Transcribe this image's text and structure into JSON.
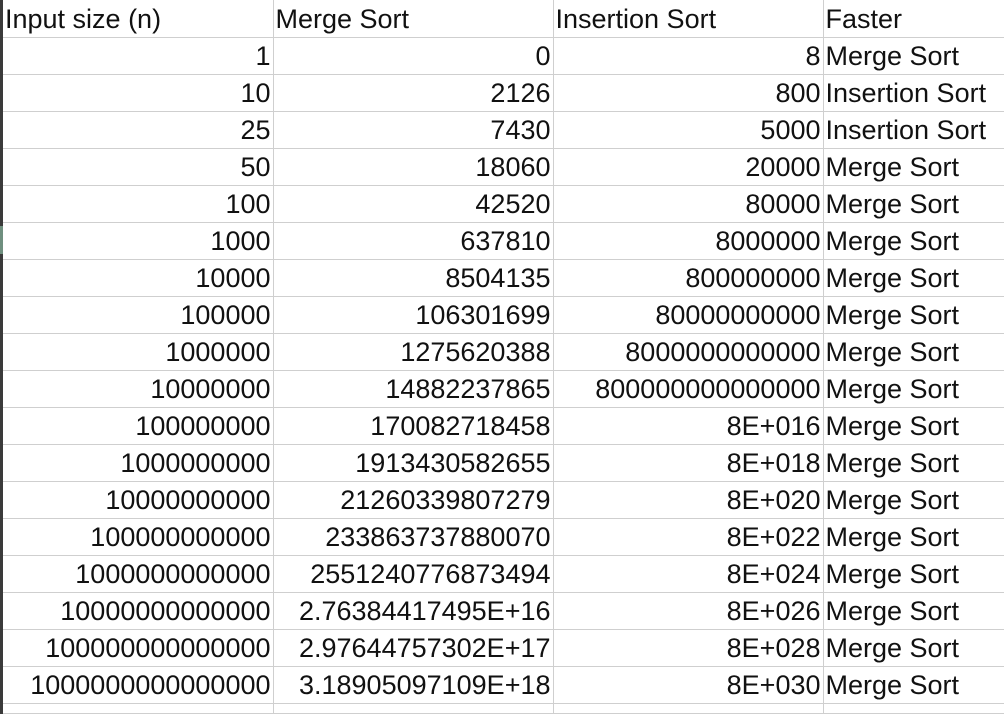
{
  "headers": [
    "Input size (n)",
    "Merge Sort",
    "Insertion Sort",
    "Faster"
  ],
  "rows": [
    [
      "1",
      "0",
      "8",
      "Merge Sort"
    ],
    [
      "10",
      "2126",
      "800",
      "Insertion Sort"
    ],
    [
      "25",
      "7430",
      "5000",
      "Insertion Sort"
    ],
    [
      "50",
      "18060",
      "20000",
      "Merge Sort"
    ],
    [
      "100",
      "42520",
      "80000",
      "Merge Sort"
    ],
    [
      "1000",
      "637810",
      "8000000",
      "Merge Sort"
    ],
    [
      "10000",
      "8504135",
      "800000000",
      "Merge Sort"
    ],
    [
      "100000",
      "106301699",
      "80000000000",
      "Merge Sort"
    ],
    [
      "1000000",
      "1275620388",
      "8000000000000",
      "Merge Sort"
    ],
    [
      "10000000",
      "14882237865",
      "800000000000000",
      "Merge Sort"
    ],
    [
      "100000000",
      "170082718458",
      "8E+016",
      "Merge Sort"
    ],
    [
      "1000000000",
      "1913430582655",
      "8E+018",
      "Merge Sort"
    ],
    [
      "10000000000",
      "21260339807279",
      "8E+020",
      "Merge Sort"
    ],
    [
      "100000000000",
      "233863737880070",
      "8E+022",
      "Merge Sort"
    ],
    [
      "1000000000000",
      "2551240776873494",
      "8E+024",
      "Merge Sort"
    ],
    [
      "10000000000000",
      "2.76384417495E+16",
      "8E+026",
      "Merge Sort"
    ],
    [
      "100000000000000",
      "2.97644757302E+17",
      "8E+028",
      "Merge Sort"
    ],
    [
      "1000000000000000",
      "3.18905097109E+18",
      "8E+030",
      "Merge Sort"
    ]
  ]
}
